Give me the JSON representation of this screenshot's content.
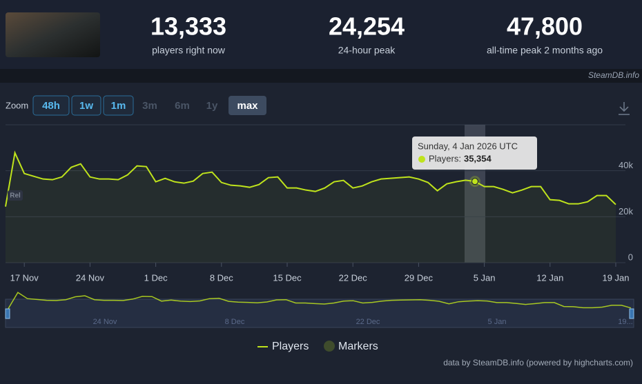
{
  "header": {
    "stats": [
      {
        "value": "13,333",
        "label": "players right now"
      },
      {
        "value": "24,254",
        "label": "24-hour peak"
      },
      {
        "value": "47,800",
        "label": "all-time peak 2 months ago"
      }
    ],
    "source": "SteamDB.info"
  },
  "zoom": {
    "label": "Zoom",
    "buttons": [
      "48h",
      "1w",
      "1m",
      "3m",
      "6m",
      "1y",
      "max"
    ]
  },
  "chart_data": {
    "type": "line",
    "categories": [
      null,
      null,
      "17 Nov",
      null,
      null,
      null,
      null,
      null,
      null,
      "24 Nov",
      null,
      null,
      null,
      null,
      null,
      null,
      "1 Dec",
      null,
      null,
      null,
      null,
      null,
      null,
      "8 Dec",
      null,
      null,
      null,
      null,
      null,
      null,
      "15 Dec",
      null,
      null,
      null,
      null,
      null,
      null,
      "22 Dec",
      null,
      null,
      null,
      null,
      null,
      null,
      "29 Dec",
      null,
      null,
      null,
      null,
      null,
      null,
      "5 Jan",
      null,
      null,
      null,
      null,
      null,
      null,
      "12 Jan",
      null,
      null,
      null,
      null,
      null,
      null,
      "19 Jan"
    ],
    "series": [
      {
        "name": "Players",
        "color": "#bfe31c",
        "values": [
          24400,
          47800,
          38800,
          37600,
          36400,
          36100,
          37300,
          41500,
          43000,
          37300,
          36400,
          36400,
          36100,
          38200,
          42100,
          41800,
          35200,
          36700,
          35200,
          34600,
          35500,
          38800,
          39400,
          34900,
          33700,
          33400,
          32800,
          34000,
          37000,
          37300,
          32500,
          32500,
          31600,
          31000,
          32500,
          35200,
          35800,
          32500,
          33400,
          35200,
          36400,
          36700,
          37000,
          37300,
          36400,
          34900,
          31300,
          34300,
          35200,
          35900,
          35354,
          33100,
          33100,
          31900,
          30400,
          31600,
          33100,
          33100,
          27400,
          27100,
          25600,
          25600,
          26500,
          29200,
          29200,
          25300
        ]
      }
    ],
    "legend": [
      "Players",
      "Markers"
    ],
    "ylim": [
      0,
      60000
    ],
    "yticks": [
      {
        "value": 0,
        "label": "0"
      },
      {
        "value": 20000,
        "label": "20k"
      },
      {
        "value": 40000,
        "label": "40k"
      }
    ],
    "grid": true,
    "annotation": "Rel",
    "tooltip": {
      "date": "Sunday, 4 Jan 2026 UTC",
      "label": "Players:",
      "value": "35,354"
    },
    "navigator_labels": [
      "24 Nov",
      "8 Dec",
      "22 Dec",
      "5 Jan",
      "19..."
    ],
    "credits": "data by SteamDB.info (powered by highcharts.com)"
  }
}
